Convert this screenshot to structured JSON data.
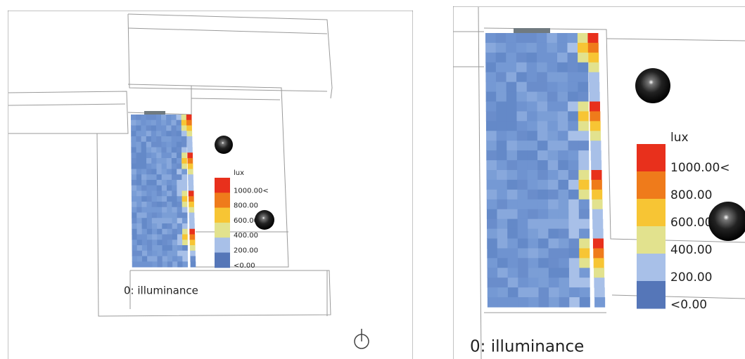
{
  "panels": [
    {
      "legend": {
        "unit": "lux",
        "labels": [
          "1000.00<",
          "800.00",
          "600.00",
          "400.00",
          "200.00",
          "<0.00"
        ]
      },
      "caption": "0: illuminance"
    },
    {
      "legend": {
        "unit": "lux",
        "labels": [
          "1000.00<",
          "800.00",
          "600.00",
          "400.00",
          "200.00",
          "<0.00"
        ]
      },
      "caption": "0: illuminance"
    }
  ]
}
